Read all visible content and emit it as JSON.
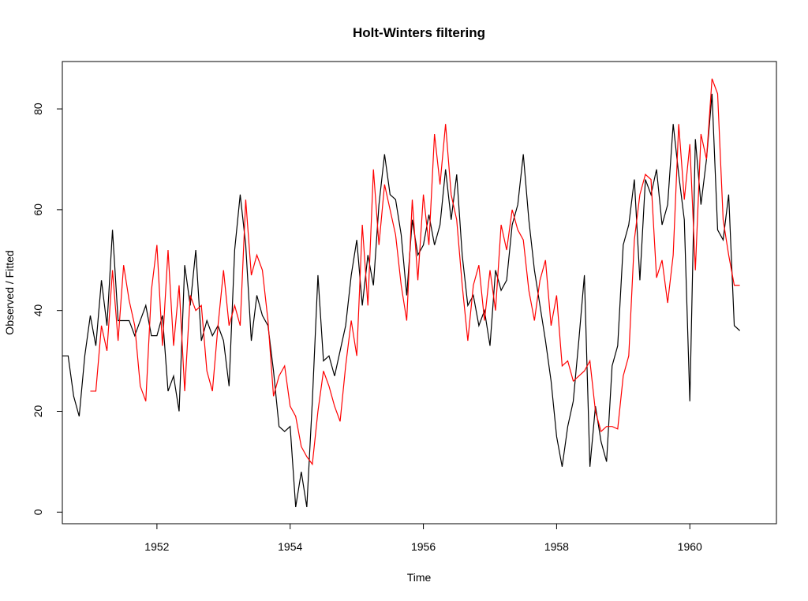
{
  "chart_data": {
    "type": "line",
    "title": "Holt-Winters filtering",
    "x_label": "Time",
    "y_label": "Observed / Fitted",
    "x": [
      1950.583,
      1950.667,
      1950.75,
      1950.833,
      1950.917,
      1951,
      1951.083,
      1951.167,
      1951.25,
      1951.333,
      1951.417,
      1951.5,
      1951.583,
      1951.667,
      1951.75,
      1951.833,
      1951.917,
      1952,
      1952.083,
      1952.167,
      1952.25,
      1952.333,
      1952.417,
      1952.5,
      1952.583,
      1952.667,
      1952.75,
      1952.833,
      1952.917,
      1953,
      1953.083,
      1953.167,
      1953.25,
      1953.333,
      1953.417,
      1953.5,
      1953.583,
      1953.667,
      1953.75,
      1953.833,
      1953.917,
      1954,
      1954.083,
      1954.167,
      1954.25,
      1954.333,
      1954.417,
      1954.5,
      1954.583,
      1954.667,
      1954.75,
      1954.833,
      1954.917,
      1955,
      1955.083,
      1955.167,
      1955.25,
      1955.333,
      1955.417,
      1955.5,
      1955.583,
      1955.667,
      1955.75,
      1955.833,
      1955.917,
      1956,
      1956.083,
      1956.167,
      1956.25,
      1956.333,
      1956.417,
      1956.5,
      1956.583,
      1956.667,
      1956.75,
      1956.833,
      1956.917,
      1957,
      1957.083,
      1957.167,
      1957.25,
      1957.333,
      1957.417,
      1957.5,
      1957.583,
      1957.667,
      1957.75,
      1957.833,
      1957.917,
      1958,
      1958.083,
      1958.167,
      1958.25,
      1958.333,
      1958.417,
      1958.5,
      1958.583,
      1958.667,
      1958.75,
      1958.833,
      1958.917,
      1959,
      1959.083,
      1959.167,
      1959.25,
      1959.333,
      1959.417,
      1959.5,
      1959.583,
      1959.667,
      1959.75,
      1959.833,
      1959.917,
      1960,
      1960.083,
      1960.167,
      1960.25,
      1960.333,
      1960.417,
      1960.5,
      1960.583,
      1960.667,
      1960.75
    ],
    "series": [
      {
        "color": "#000000",
        "values": [
          31,
          31,
          23,
          19,
          31,
          39,
          33,
          46,
          37,
          56,
          38,
          38,
          38,
          35,
          38,
          41,
          35,
          35,
          39,
          24,
          27,
          20,
          49,
          41,
          52,
          34,
          38,
          35,
          37,
          34,
          25,
          52,
          63,
          53,
          34,
          43,
          39,
          37,
          28,
          17,
          16,
          17,
          1,
          8,
          1,
          22,
          47,
          30,
          31,
          27,
          32,
          37,
          47,
          54,
          41,
          51,
          45,
          61,
          71,
          63,
          62,
          55,
          43,
          58,
          51,
          53,
          59,
          53,
          57,
          68,
          58,
          67,
          51,
          41,
          43,
          37,
          40,
          33,
          48,
          44,
          46,
          57,
          61,
          71,
          58,
          48,
          41,
          34,
          26,
          15,
          9,
          17,
          22,
          34,
          47,
          9,
          21,
          14,
          10,
          29,
          33,
          53,
          57,
          66,
          46,
          66,
          63,
          68,
          57,
          61,
          77,
          67,
          58,
          22,
          74,
          61,
          70,
          83,
          56,
          54,
          63,
          37,
          36
        ]
      },
      {
        "color": "#ff0000",
        "values": [
          null,
          null,
          null,
          null,
          null,
          24,
          24,
          37,
          32,
          48,
          34,
          49,
          42,
          37,
          25,
          22,
          44,
          53,
          33,
          52,
          33,
          45,
          24,
          43,
          40,
          41,
          28,
          24,
          37,
          48,
          37,
          41,
          37,
          62,
          47,
          51,
          48,
          38,
          23,
          27,
          29,
          21,
          19,
          13,
          11,
          9.5,
          20,
          28,
          25,
          21,
          18,
          29,
          38,
          31,
          57,
          41,
          68,
          53,
          65,
          60,
          55,
          45,
          38,
          62,
          46,
          63,
          53,
          75,
          65,
          77,
          63,
          58,
          45,
          34,
          45,
          49,
          38,
          48,
          40,
          57,
          52,
          60,
          56,
          54,
          44,
          38,
          46,
          50,
          37,
          43,
          29,
          30,
          26,
          27,
          28,
          30,
          20,
          16,
          17,
          17,
          16.5,
          27,
          31,
          54,
          63,
          67,
          66,
          46.5,
          50,
          41.5,
          51,
          77,
          62,
          73,
          48,
          75,
          70,
          86,
          83,
          58,
          51,
          45,
          45
        ]
      }
    ],
    "xlim": [
      1950.58,
      1961.3
    ],
    "ylim": [
      -2.3,
      89.4
    ],
    "xticks": [
      1952,
      1954,
      1956,
      1958,
      1960
    ],
    "yticks": [
      0,
      20,
      40,
      60,
      80
    ]
  }
}
